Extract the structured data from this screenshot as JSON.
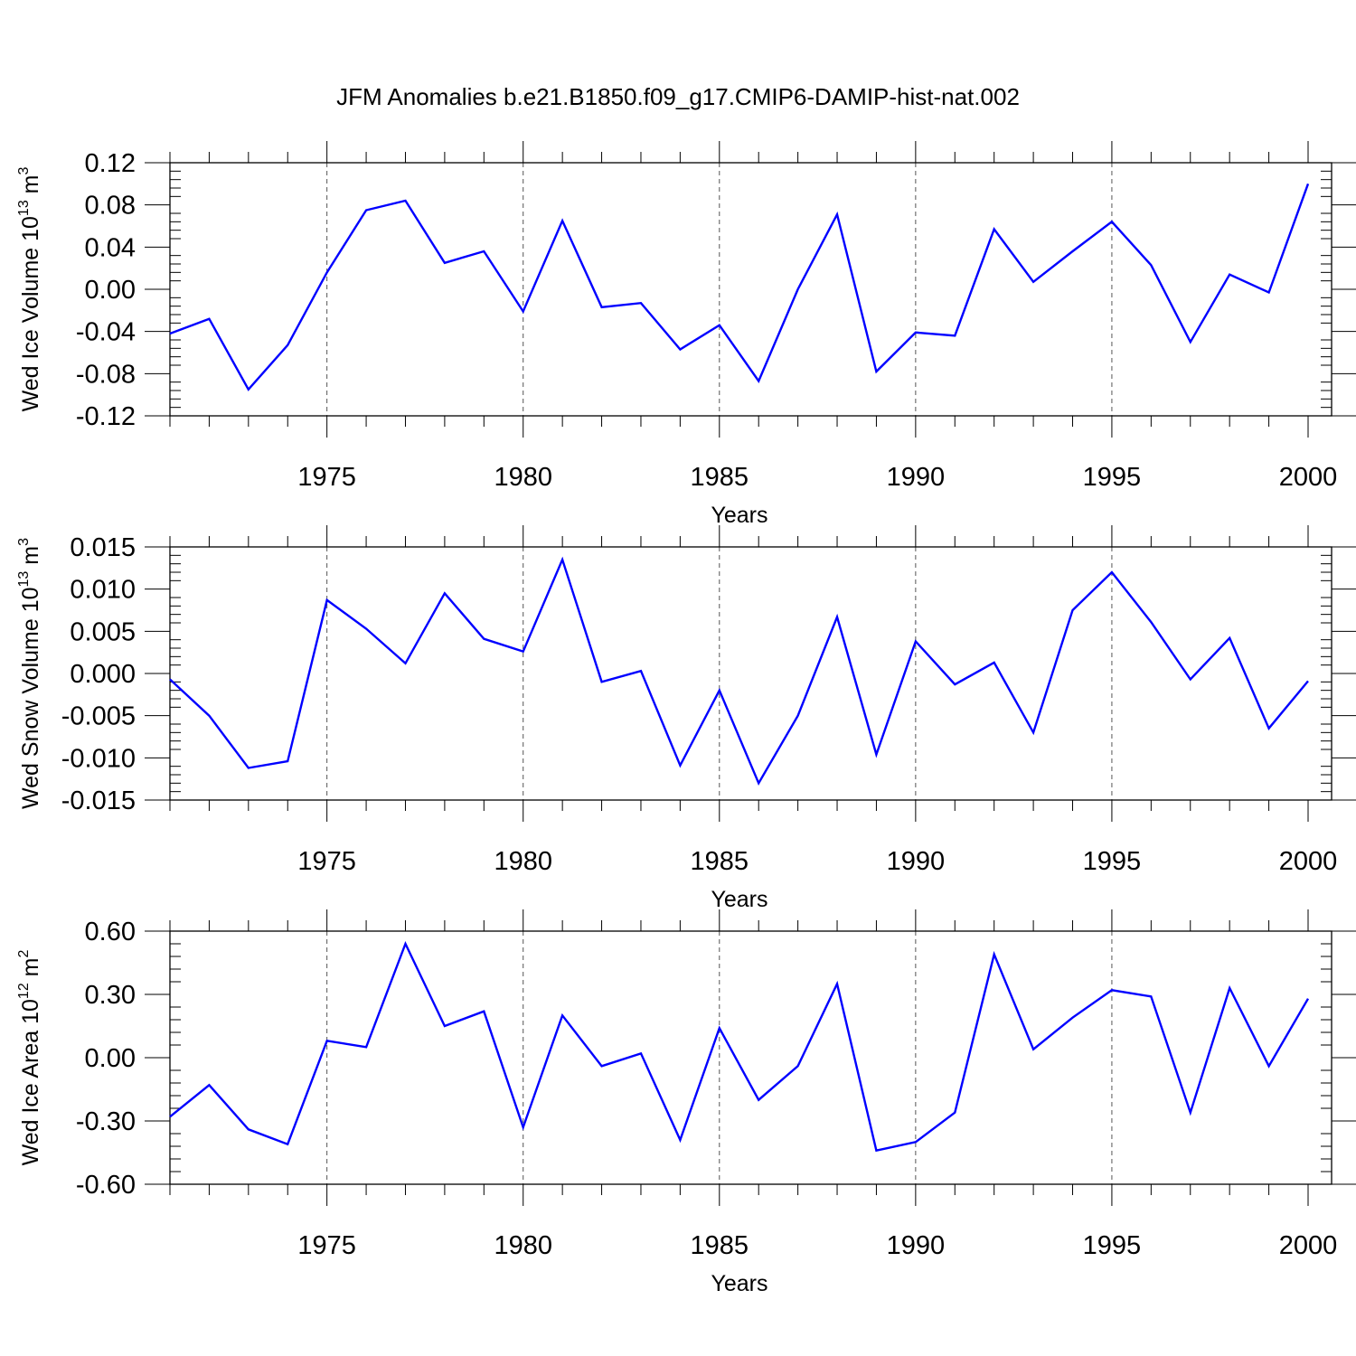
{
  "title": "JFM Anomalies b.e21.B1850.f09_g17.CMIP6-DAMIP-hist-nat.002",
  "colors": {
    "line": "#0000ff",
    "axis": "#000000",
    "grid": "#555555"
  },
  "chart_data": [
    {
      "type": "line",
      "xlabel": "Years",
      "ylabel": {
        "text": "Wed Ice Volume 10",
        "sup": "13",
        "unit": " m",
        "unit_sup": "3"
      },
      "xlim": [
        1971,
        2000
      ],
      "ylim": [
        -0.12,
        0.12
      ],
      "x_ticks": [
        1975,
        1980,
        1985,
        1990,
        1995,
        2000
      ],
      "y_ticks": [
        "-0.12",
        "-0.08",
        "-0.04",
        "0.00",
        "0.04",
        "0.08",
        "0.12"
      ],
      "y_tick_values": [
        -0.12,
        -0.08,
        -0.04,
        0.0,
        0.04,
        0.08,
        0.12
      ],
      "grid_x": true,
      "x": [
        1971,
        1972,
        1973,
        1974,
        1975,
        1976,
        1977,
        1978,
        1979,
        1980,
        1981,
        1982,
        1983,
        1984,
        1985,
        1986,
        1987,
        1988,
        1989,
        1990,
        1991,
        1992,
        1993,
        1994,
        1995,
        1996,
        1997,
        1998,
        1999,
        2000
      ],
      "values": [
        -0.042,
        -0.028,
        -0.095,
        -0.053,
        0.016,
        0.075,
        0.084,
        0.025,
        0.036,
        -0.021,
        0.065,
        -0.017,
        -0.013,
        -0.057,
        -0.034,
        -0.087,
        0.0,
        0.071,
        -0.078,
        -0.041,
        -0.044,
        0.057,
        0.007,
        0.036,
        0.064,
        0.023,
        -0.05,
        0.014,
        -0.003,
        0.1
      ]
    },
    {
      "type": "line",
      "xlabel": "Years",
      "ylabel": {
        "text": "Wed Snow Volume 10",
        "sup": "13",
        "unit": " m",
        "unit_sup": "3"
      },
      "xlim": [
        1971,
        2000
      ],
      "ylim": [
        -0.015,
        0.015
      ],
      "x_ticks": [
        1975,
        1980,
        1985,
        1990,
        1995,
        2000
      ],
      "y_ticks": [
        "-0.015",
        "-0.010",
        "-0.005",
        "0.000",
        "0.005",
        "0.010",
        "0.015"
      ],
      "y_tick_values": [
        -0.015,
        -0.01,
        -0.005,
        0.0,
        0.005,
        0.01,
        0.015
      ],
      "grid_x": true,
      "x": [
        1971,
        1972,
        1973,
        1974,
        1975,
        1976,
        1977,
        1978,
        1979,
        1980,
        1981,
        1982,
        1983,
        1984,
        1985,
        1986,
        1987,
        1988,
        1989,
        1990,
        1991,
        1992,
        1993,
        1994,
        1995,
        1996,
        1997,
        1998,
        1999,
        2000
      ],
      "values": [
        -0.0007,
        -0.005,
        -0.0112,
        -0.0104,
        0.0087,
        0.0053,
        0.0012,
        0.0095,
        0.0041,
        0.0026,
        0.0135,
        -0.001,
        0.0003,
        -0.0109,
        -0.002,
        -0.013,
        -0.005,
        0.0067,
        -0.0096,
        0.0038,
        -0.0013,
        0.0013,
        -0.007,
        0.0075,
        0.012,
        0.0061,
        -0.0007,
        0.0042,
        -0.0065,
        -0.0009
      ]
    },
    {
      "type": "line",
      "xlabel": "Years",
      "ylabel": {
        "text": "Wed Ice Area 10",
        "sup": "12",
        "unit": " m",
        "unit_sup": "2"
      },
      "xlim": [
        1971,
        2000
      ],
      "ylim": [
        -0.6,
        0.6
      ],
      "x_ticks": [
        1975,
        1980,
        1985,
        1990,
        1995,
        2000
      ],
      "y_ticks": [
        "-0.60",
        "-0.30",
        "0.00",
        "0.30",
        "0.60"
      ],
      "y_tick_values": [
        -0.6,
        -0.3,
        0.0,
        0.3,
        0.6
      ],
      "grid_x": true,
      "x": [
        1971,
        1972,
        1973,
        1974,
        1975,
        1976,
        1977,
        1978,
        1979,
        1980,
        1981,
        1982,
        1983,
        1984,
        1985,
        1986,
        1987,
        1988,
        1989,
        1990,
        1991,
        1992,
        1993,
        1994,
        1995,
        1996,
        1997,
        1998,
        1999,
        2000
      ],
      "values": [
        -0.28,
        -0.13,
        -0.34,
        -0.41,
        0.08,
        0.05,
        0.54,
        0.15,
        0.22,
        -0.33,
        0.2,
        -0.04,
        0.02,
        -0.39,
        0.14,
        -0.2,
        -0.04,
        0.35,
        -0.44,
        -0.4,
        -0.26,
        0.49,
        0.04,
        0.19,
        0.32,
        0.29,
        -0.26,
        0.33,
        -0.04,
        0.28
      ]
    }
  ]
}
